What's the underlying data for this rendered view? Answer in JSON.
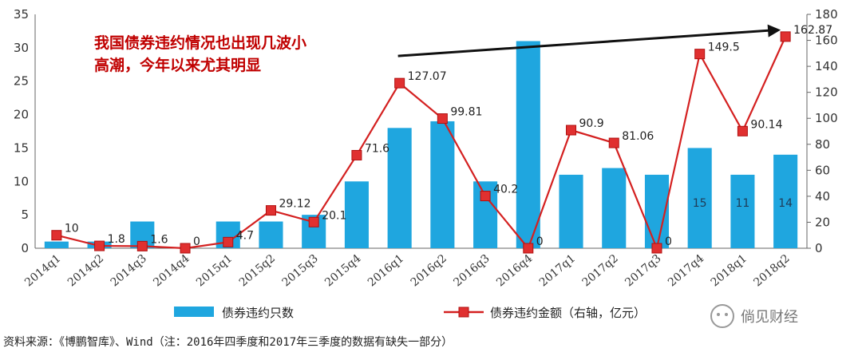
{
  "chart_data": {
    "type": "bar+line",
    "categories": [
      "2014q1",
      "2014q2",
      "2014q3",
      "2014q4",
      "2015q1",
      "2015q2",
      "2015q3",
      "2015q4",
      "2016q1",
      "2016q2",
      "2016q3",
      "2016q4",
      "2017q1",
      "2017q2",
      "2017q3",
      "2017q4",
      "2018q1",
      "2018q2"
    ],
    "series": [
      {
        "name": "债券违约只数",
        "type": "bar",
        "axis": "left",
        "color": "#1fa6df",
        "values": [
          1,
          1,
          4,
          0,
          4,
          4,
          5,
          10,
          18,
          19,
          10,
          31,
          11,
          12,
          11,
          15,
          11,
          14
        ]
      },
      {
        "name": "债券违约金额（右轴，亿元）",
        "type": "line",
        "axis": "right",
        "color": "#d42020",
        "values": [
          10,
          1.8,
          1.6,
          0,
          4.7,
          29.12,
          20.1,
          71.6,
          127.07,
          99.81,
          40.2,
          0,
          90.9,
          81.06,
          0,
          149.5,
          90.14,
          162.87
        ]
      }
    ],
    "line_labels": [
      "10",
      "1.8",
      "1.6",
      "0",
      "4.7",
      "29.12",
      "20.1",
      "71.6",
      "127.07",
      "99.81",
      "40.2",
      "0",
      "90.9",
      "81.06",
      "0",
      "149.5",
      "90.14",
      "162.87"
    ],
    "bar_labels": [
      "",
      "",
      "",
      "",
      "",
      "",
      "",
      "",
      "",
      "",
      "",
      "",
      "",
      "",
      "",
      "15",
      "11",
      "14"
    ],
    "y_left": {
      "ticks": [
        "0",
        "5",
        "10",
        "15",
        "20",
        "25",
        "30",
        "35"
      ],
      "lim": [
        0,
        35
      ]
    },
    "y_right": {
      "ticks": [
        "0",
        "20",
        "40",
        "60",
        "80",
        "100",
        "120",
        "140",
        "160",
        "180"
      ],
      "lim": [
        0,
        180
      ]
    },
    "annotation": {
      "line1": "我国债券违约情况也出现几波小",
      "line2": "高潮，今年以来尤其明显"
    },
    "trend_arrow": {
      "from_category": "2016q1",
      "from_value": 148,
      "to_category": "2018q2",
      "to_value": 168
    },
    "legend": [
      "债券违约只数",
      "债券违约金额（右轴，亿元）"
    ],
    "source": "资料来源：《博鹏智库》、Wind（注：2016年四季度和2017年三季度的数据有缺失一部分）",
    "watermark": "倘见财经"
  }
}
